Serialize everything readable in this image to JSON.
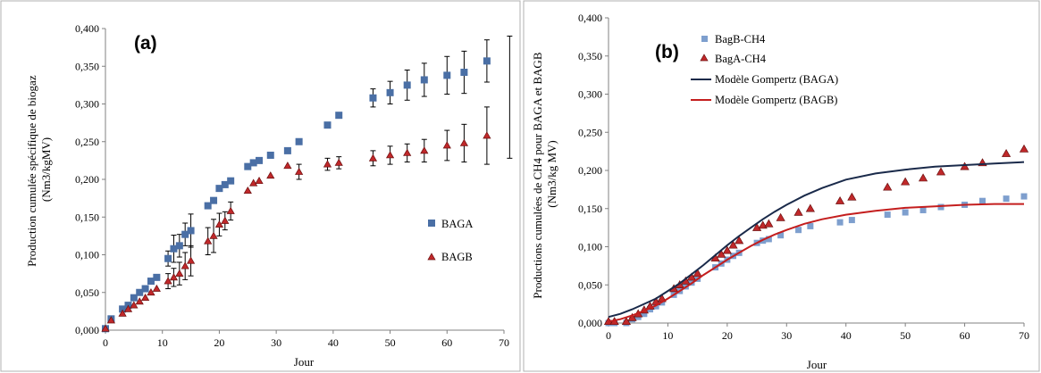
{
  "colors": {
    "blue_marker": "#4a6fa5",
    "blue_marker_b": "#7e9fce",
    "red_marker": "#c0282a",
    "dark_blue_line": "#1a2a4a",
    "red_line": "#c41e1e",
    "axis": "#808080"
  },
  "chart_data": [
    {
      "panel": "(a)",
      "type": "scatter",
      "title": "",
      "xlabel": "Jour",
      "ylabel": "Production cumulée spécifique de biogaz (Nm3/kgMV)",
      "ylabel_lines": [
        "Production cumulée spécifique de biogaz",
        "(Nm3/kgMV)"
      ],
      "xlim": [
        0,
        70
      ],
      "ylim": [
        0,
        0.4
      ],
      "xticks": [
        0,
        10,
        20,
        30,
        40,
        50,
        60,
        70
      ],
      "yticks": [
        0,
        0.05,
        0.1,
        0.15,
        0.2,
        0.25,
        0.3,
        0.35,
        0.4
      ],
      "xtick_labels": [
        "0",
        "10",
        "20",
        "30",
        "40",
        "50",
        "60",
        "70"
      ],
      "ytick_labels": [
        "0,000",
        "0,050",
        "0,100",
        "0,150",
        "0,200",
        "0,250",
        "0,300",
        "0,350",
        "0,400"
      ],
      "legend_position": "right",
      "series": [
        {
          "name": "BAGA",
          "marker": "square",
          "color": "#4a6fa5",
          "points": [
            [
              0,
              0.002
            ],
            [
              1,
              0.015
            ],
            [
              3,
              0.028
            ],
            [
              4,
              0.033
            ],
            [
              5,
              0.043
            ],
            [
              6,
              0.05
            ],
            [
              7,
              0.055
            ],
            [
              8,
              0.065
            ],
            [
              9,
              0.07
            ],
            [
              11,
              0.095
            ],
            [
              12,
              0.108
            ],
            [
              13,
              0.112
            ],
            [
              14,
              0.127
            ],
            [
              15,
              0.132
            ],
            [
              18,
              0.165
            ],
            [
              19,
              0.172
            ],
            [
              20,
              0.188
            ],
            [
              21,
              0.193
            ],
            [
              22,
              0.198
            ],
            [
              25,
              0.217
            ],
            [
              26,
              0.222
            ],
            [
              27,
              0.225
            ],
            [
              29,
              0.232
            ],
            [
              32,
              0.238
            ],
            [
              34,
              0.25
            ],
            [
              39,
              0.272
            ],
            [
              41,
              0.285
            ],
            [
              47,
              0.308
            ],
            [
              50,
              0.315
            ],
            [
              53,
              0.325
            ],
            [
              56,
              0.332
            ],
            [
              60,
              0.338
            ],
            [
              63,
              0.342
            ],
            [
              67,
              0.357
            ]
          ],
          "errors": [
            0,
            0,
            0,
            0,
            0,
            0,
            0,
            0,
            0,
            0.01,
            0.018,
            0.015,
            0.015,
            0.022,
            0,
            0,
            0,
            0,
            0,
            0,
            0,
            0,
            0,
            0,
            0,
            0,
            0,
            0.012,
            0.015,
            0.02,
            0.022,
            0.025,
            0.028,
            0.028
          ]
        },
        {
          "name": "BAGB",
          "marker": "triangle",
          "color": "#c0282a",
          "points": [
            [
              0,
              0.002
            ],
            [
              1,
              0.013
            ],
            [
              3,
              0.022
            ],
            [
              4,
              0.028
            ],
            [
              5,
              0.033
            ],
            [
              6,
              0.038
            ],
            [
              7,
              0.043
            ],
            [
              8,
              0.05
            ],
            [
              9,
              0.055
            ],
            [
              11,
              0.065
            ],
            [
              12,
              0.07
            ],
            [
              13,
              0.075
            ],
            [
              14,
              0.085
            ],
            [
              15,
              0.092
            ],
            [
              18,
              0.118
            ],
            [
              19,
              0.125
            ],
            [
              20,
              0.14
            ],
            [
              21,
              0.145
            ],
            [
              22,
              0.158
            ],
            [
              25,
              0.185
            ],
            [
              26,
              0.195
            ],
            [
              27,
              0.198
            ],
            [
              29,
              0.205
            ],
            [
              32,
              0.218
            ],
            [
              34,
              0.21
            ],
            [
              39,
              0.22
            ],
            [
              41,
              0.222
            ],
            [
              47,
              0.228
            ],
            [
              50,
              0.232
            ],
            [
              53,
              0.235
            ],
            [
              56,
              0.238
            ],
            [
              60,
              0.245
            ],
            [
              63,
              0.248
            ],
            [
              67,
              0.258
            ]
          ],
          "errors": [
            0,
            0,
            0,
            0,
            0,
            0,
            0,
            0,
            0,
            0.01,
            0.012,
            0.015,
            0.018,
            0.02,
            0.018,
            0.022,
            0.015,
            0.012,
            0.012,
            0,
            0,
            0,
            0,
            0,
            0.01,
            0.008,
            0.008,
            0.01,
            0.012,
            0.012,
            0.015,
            0.02,
            0.025,
            0.038
          ]
        }
      ],
      "extra_errorbar": {
        "x": 71,
        "low": 0.228,
        "high": 0.39
      }
    },
    {
      "panel": "(b)",
      "type": "scatter",
      "title": "",
      "xlabel": "Jour",
      "ylabel": "Productions cumulées de CH4 pour BAGA et BAGB (Nm3/kg MV)",
      "ylabel_lines": [
        "Productions cumulées de CH4 pour BAGA et BAGB",
        "(Nm3/kg MV)"
      ],
      "xlim": [
        0,
        70
      ],
      "ylim": [
        0,
        0.4
      ],
      "xticks": [
        0,
        10,
        20,
        30,
        40,
        50,
        60,
        70
      ],
      "yticks": [
        0,
        0.05,
        0.1,
        0.15,
        0.2,
        0.25,
        0.3,
        0.35,
        0.4
      ],
      "xtick_labels": [
        "0",
        "10",
        "20",
        "30",
        "40",
        "50",
        "60",
        "70"
      ],
      "ytick_labels": [
        "0,000",
        "0,050",
        "0,100",
        "0,150",
        "0,200",
        "0,250",
        "0,300",
        "0,350",
        "0,400"
      ],
      "legend_position": "top-left",
      "series": [
        {
          "name": "BagB-CH4",
          "marker": "square",
          "color": "#7e9fce",
          "points": [
            [
              0,
              0
            ],
            [
              1,
              0
            ],
            [
              3,
              0
            ],
            [
              4,
              0.005
            ],
            [
              5,
              0.008
            ],
            [
              6,
              0.012
            ],
            [
              7,
              0.018
            ],
            [
              8,
              0.022
            ],
            [
              9,
              0.027
            ],
            [
              11,
              0.037
            ],
            [
              12,
              0.042
            ],
            [
              13,
              0.048
            ],
            [
              14,
              0.053
            ],
            [
              15,
              0.058
            ],
            [
              18,
              0.073
            ],
            [
              19,
              0.078
            ],
            [
              20,
              0.083
            ],
            [
              21,
              0.088
            ],
            [
              22,
              0.092
            ],
            [
              25,
              0.105
            ],
            [
              26,
              0.108
            ],
            [
              27,
              0.11
            ],
            [
              29,
              0.115
            ],
            [
              32,
              0.122
            ],
            [
              34,
              0.127
            ],
            [
              39,
              0.132
            ],
            [
              41,
              0.135
            ],
            [
              47,
              0.142
            ],
            [
              50,
              0.145
            ],
            [
              53,
              0.148
            ],
            [
              56,
              0.152
            ],
            [
              60,
              0.155
            ],
            [
              63,
              0.16
            ],
            [
              67,
              0.163
            ],
            [
              70,
              0.166
            ]
          ]
        },
        {
          "name": "BagA-CH4",
          "marker": "triangle",
          "color": "#c0282a",
          "points": [
            [
              0,
              0.002
            ],
            [
              1,
              0.002
            ],
            [
              3,
              0.002
            ],
            [
              4,
              0.007
            ],
            [
              5,
              0.012
            ],
            [
              6,
              0.017
            ],
            [
              7,
              0.022
            ],
            [
              8,
              0.028
            ],
            [
              9,
              0.032
            ],
            [
              11,
              0.045
            ],
            [
              12,
              0.05
            ],
            [
              13,
              0.055
            ],
            [
              14,
              0.06
            ],
            [
              15,
              0.065
            ],
            [
              18,
              0.085
            ],
            [
              19,
              0.09
            ],
            [
              20,
              0.095
            ],
            [
              21,
              0.102
            ],
            [
              22,
              0.108
            ],
            [
              25,
              0.125
            ],
            [
              26,
              0.128
            ],
            [
              27,
              0.13
            ],
            [
              29,
              0.138
            ],
            [
              32,
              0.145
            ],
            [
              34,
              0.15
            ],
            [
              39,
              0.16
            ],
            [
              41,
              0.165
            ],
            [
              47,
              0.178
            ],
            [
              50,
              0.185
            ],
            [
              53,
              0.19
            ],
            [
              56,
              0.198
            ],
            [
              60,
              0.205
            ],
            [
              63,
              0.21
            ],
            [
              67,
              0.222
            ],
            [
              70,
              0.228
            ]
          ]
        },
        {
          "name": "Modèle Gompertz (BAGA)",
          "line": true,
          "color": "#1a2a4a",
          "points": [
            [
              0,
              0.008
            ],
            [
              2,
              0.012
            ],
            [
              4,
              0.018
            ],
            [
              6,
              0.025
            ],
            [
              8,
              0.032
            ],
            [
              10,
              0.042
            ],
            [
              12,
              0.052
            ],
            [
              14,
              0.064
            ],
            [
              16,
              0.076
            ],
            [
              18,
              0.089
            ],
            [
              20,
              0.102
            ],
            [
              22,
              0.114
            ],
            [
              24,
              0.125
            ],
            [
              26,
              0.136
            ],
            [
              28,
              0.146
            ],
            [
              30,
              0.155
            ],
            [
              33,
              0.167
            ],
            [
              36,
              0.177
            ],
            [
              40,
              0.188
            ],
            [
              45,
              0.196
            ],
            [
              50,
              0.201
            ],
            [
              55,
              0.205
            ],
            [
              60,
              0.207
            ],
            [
              65,
              0.209
            ],
            [
              70,
              0.211
            ]
          ]
        },
        {
          "name": "Modèle Gompertz (BAGB)",
          "line": true,
          "color": "#c41e1e",
          "points": [
            [
              0,
              0.002
            ],
            [
              2,
              0.005
            ],
            [
              4,
              0.01
            ],
            [
              6,
              0.016
            ],
            [
              8,
              0.023
            ],
            [
              10,
              0.032
            ],
            [
              12,
              0.042
            ],
            [
              14,
              0.052
            ],
            [
              16,
              0.063
            ],
            [
              18,
              0.073
            ],
            [
              20,
              0.083
            ],
            [
              22,
              0.092
            ],
            [
              24,
              0.101
            ],
            [
              26,
              0.109
            ],
            [
              28,
              0.116
            ],
            [
              30,
              0.122
            ],
            [
              33,
              0.13
            ],
            [
              36,
              0.136
            ],
            [
              40,
              0.142
            ],
            [
              45,
              0.147
            ],
            [
              50,
              0.151
            ],
            [
              55,
              0.153
            ],
            [
              60,
              0.155
            ],
            [
              65,
              0.156
            ],
            [
              70,
              0.156
            ]
          ]
        }
      ]
    }
  ]
}
